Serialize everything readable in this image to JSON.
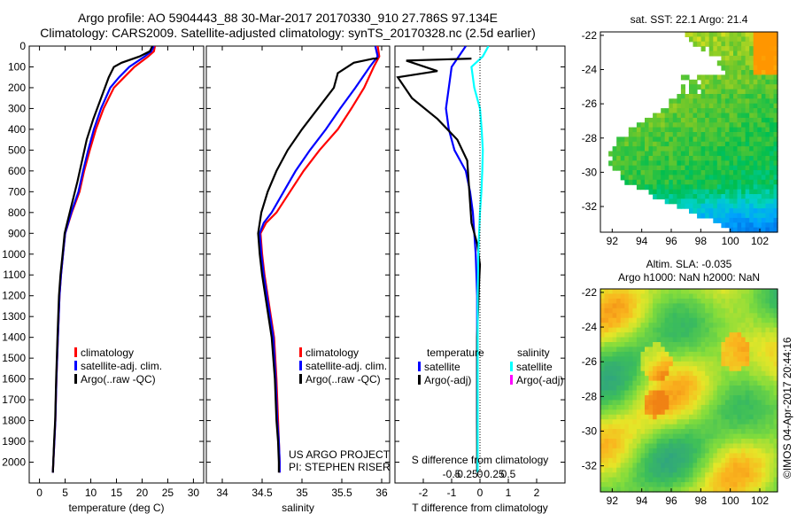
{
  "header": {
    "title_line1": "Argo profile: AO 5904443_88 30-Mar-2017 20170330_910 27.786S 97.134E",
    "title_line2": "Climatology: CARS2009. Satellite-adjusted climatology: synTS_20170328.nc (2.5d earlier)"
  },
  "colors": {
    "climatology": "#ff0000",
    "satellite": "#0000ff",
    "argo": "#000000",
    "sal_satellite": "#00ffff",
    "sal_argo": "#ff00ff"
  },
  "chart_data": [
    {
      "id": "temperature",
      "type": "line",
      "xlabel": "temperature (deg C)",
      "ylabel": "",
      "xlim": [
        -2,
        32
      ],
      "ylim": [
        2100,
        0
      ],
      "xticks": [
        0,
        5,
        10,
        15,
        20,
        25,
        30
      ],
      "yticks": [
        0,
        100,
        200,
        300,
        400,
        500,
        600,
        700,
        800,
        900,
        1000,
        1100,
        1200,
        1300,
        1400,
        1500,
        1600,
        1700,
        1800,
        1900,
        2000
      ],
      "legend": [
        "climatology",
        "satellite-adj. clim.",
        "Argo(..raw -QC)"
      ],
      "series": [
        {
          "name": "climatology",
          "color": "#ff0000",
          "x": [
            22.5,
            22.3,
            21.2,
            18.5,
            16.5,
            14.5,
            12.5,
            11,
            9.8,
            8.7,
            7.8,
            6.3,
            5,
            4.6,
            4.2,
            3.9,
            3.6,
            3.3,
            3.1,
            2.9,
            2.7,
            2.6
          ],
          "y": [
            0,
            25,
            50,
            100,
            150,
            200,
            300,
            400,
            500,
            600,
            700,
            800,
            900,
            1000,
            1100,
            1200,
            1400,
            1600,
            1800,
            1900,
            2000,
            2050
          ]
        },
        {
          "name": "satellite-adj. clim.",
          "color": "#0000ff",
          "x": [
            22.3,
            21.8,
            20.5,
            17.5,
            15.5,
            13.8,
            12,
            10.6,
            9.5,
            8.5,
            7.6,
            6.2,
            5,
            4.6,
            4.2,
            3.9,
            3.6,
            3.3,
            3.1,
            2.9,
            2.7,
            2.6
          ],
          "y": [
            0,
            25,
            50,
            100,
            150,
            200,
            300,
            400,
            500,
            600,
            700,
            800,
            900,
            1000,
            1100,
            1200,
            1400,
            1600,
            1800,
            1900,
            2000,
            2050
          ]
        },
        {
          "name": "Argo(..raw -QC)",
          "color": "#000000",
          "x": [
            22,
            21.5,
            19.5,
            16,
            14.5,
            13.5,
            12,
            10.5,
            9.2,
            8.3,
            7.4,
            6.1,
            4.9,
            4.5,
            4.1,
            3.8,
            3.5,
            3.25,
            3.05,
            2.85,
            2.7,
            2.6
          ],
          "y": [
            0,
            25,
            50,
            80,
            100,
            150,
            250,
            350,
            450,
            550,
            650,
            780,
            900,
            1000,
            1100,
            1200,
            1400,
            1600,
            1800,
            1900,
            2000,
            2050
          ]
        }
      ]
    },
    {
      "id": "salinity",
      "type": "line",
      "xlabel": "salinity",
      "ylabel": "",
      "xlim": [
        33.8,
        36.1
      ],
      "ylim": [
        2100,
        0
      ],
      "xticks": [
        34,
        34.5,
        35,
        35.5,
        36
      ],
      "legend": [
        "climatology",
        "satellite-adj. clim.",
        "Argo(..raw -QC)"
      ],
      "annotations": [
        "US ARGO PROJECT",
        "PI: STEPHEN RISER"
      ],
      "series": [
        {
          "name": "climatology",
          "color": "#ff0000",
          "x": [
            35.95,
            35.97,
            35.9,
            35.78,
            35.62,
            35.45,
            35.22,
            35.02,
            34.85,
            34.68,
            34.55,
            34.48,
            34.5,
            34.53,
            34.57,
            34.61,
            34.65,
            34.68,
            34.7,
            34.71,
            34.72,
            34.72
          ],
          "y": [
            0,
            50,
            100,
            200,
            300,
            400,
            500,
            600,
            700,
            800,
            850,
            900,
            1000,
            1100,
            1200,
            1300,
            1400,
            1600,
            1800,
            1900,
            2000,
            2050
          ]
        },
        {
          "name": "satellite-adj. clim.",
          "color": "#0000ff",
          "x": [
            35.92,
            35.95,
            35.85,
            35.67,
            35.48,
            35.3,
            35.1,
            34.92,
            34.77,
            34.62,
            34.52,
            34.47,
            34.49,
            34.52,
            34.56,
            34.6,
            34.64,
            34.67,
            34.69,
            34.71,
            34.72,
            34.72
          ],
          "y": [
            0,
            50,
            100,
            200,
            300,
            400,
            500,
            600,
            700,
            800,
            850,
            900,
            1000,
            1100,
            1200,
            1300,
            1400,
            1600,
            1800,
            1900,
            2000,
            2050
          ]
        },
        {
          "name": "Argo(..raw -QC)",
          "color": "#000000",
          "x": [
            35.95,
            35.9,
            35.65,
            35.45,
            35.4,
            35.2,
            35.0,
            34.82,
            34.68,
            34.57,
            34.49,
            34.45,
            34.47,
            34.5,
            34.54,
            34.58,
            34.62,
            34.66,
            34.68,
            34.7,
            34.71,
            34.71
          ],
          "y": [
            60,
            60,
            80,
            130,
            200,
            300,
            400,
            500,
            600,
            700,
            800,
            900,
            1000,
            1100,
            1200,
            1300,
            1400,
            1600,
            1800,
            1900,
            2000,
            2050
          ]
        }
      ]
    },
    {
      "id": "difference",
      "type": "line",
      "xlabel": "T difference from climatology",
      "xlabel_top": "S difference from climatology",
      "xlim": [
        -3,
        3
      ],
      "ylim": [
        2100,
        0
      ],
      "xticks": [
        -2,
        -1,
        0,
        1,
        2
      ],
      "xtick_labels": [
        "-2",
        "-1",
        "0",
        "1",
        "2"
      ],
      "s_ticks": [
        -0.5,
        -0.25,
        0,
        0.25,
        0.5
      ],
      "s_tick_labels": [
        "-0.5",
        "-0.25",
        "0",
        "0.25",
        "0.5"
      ],
      "legend_temperature": [
        "temperature",
        "satellite",
        "Argo(-adj)"
      ],
      "legend_salinity": [
        "salinity",
        "satellite",
        "Argo(-adj)"
      ],
      "series": [
        {
          "name": "temperature satellite",
          "color": "#0000ff",
          "x": [
            -0.5,
            -1.0,
            -1.1,
            -1.2,
            -1.1,
            -0.9,
            -0.7,
            -0.5,
            -0.35,
            -0.25,
            -0.2,
            -0.15,
            -0.1,
            -0.1,
            -0.1,
            -0.1,
            -0.08
          ],
          "y": [
            0,
            100,
            200,
            300,
            400,
            500,
            550,
            600,
            700,
            800,
            900,
            1000,
            1200,
            1400,
            1600,
            1800,
            2050
          ]
        },
        {
          "name": "temperature Argo(-adj)",
          "color": "#000000",
          "x": [
            -0.3,
            -2.6,
            -1.5,
            -2.9,
            -2.4,
            -1.5,
            -0.8,
            -0.45,
            -0.4,
            -0.35,
            -0.3,
            -0.1,
            0.0,
            -0.05,
            -0.1,
            -0.1,
            -0.1
          ],
          "y": [
            60,
            70,
            120,
            150,
            250,
            350,
            450,
            550,
            650,
            750,
            850,
            950,
            1050,
            1200,
            1400,
            1800,
            2050
          ]
        },
        {
          "name": "salinity satellite",
          "color": "#00ffff",
          "x": [
            0.3,
            0.1,
            -0.3,
            -0.2,
            0.0,
            0.06,
            0.1,
            0.08,
            0.05,
            0.0,
            -0.03,
            -0.06,
            -0.08,
            -0.08,
            -0.08,
            -0.08
          ],
          "y": [
            0,
            50,
            100,
            200,
            300,
            400,
            500,
            600,
            700,
            800,
            900,
            1000,
            1200,
            1500,
            1800,
            2050
          ]
        }
      ]
    },
    {
      "id": "map_sst",
      "type": "heatmap",
      "title": "sat. SST: 22.1  Argo: 21.4",
      "xticks": [
        92,
        94,
        96,
        98,
        100,
        102
      ],
      "yticks": [
        -22,
        -24,
        -26,
        -28,
        -30,
        -32
      ],
      "xlim": [
        91.2,
        103.2
      ],
      "ylim": [
        -33.5,
        -21.8
      ]
    },
    {
      "id": "map_sla",
      "type": "heatmap",
      "title": "Altim. SLA: -0.035",
      "subtitle": "Argo h1000: NaN  h2000: NaN",
      "xticks": [
        92,
        94,
        96,
        98,
        100,
        102
      ],
      "yticks": [
        -22,
        -24,
        -26,
        -28,
        -30,
        -32
      ],
      "xlim": [
        91.2,
        103.2
      ],
      "ylim": [
        -33.5,
        -21.8
      ]
    }
  ],
  "footer": {
    "credit": "©IMOS 04-Apr-2017 20:44:16"
  }
}
